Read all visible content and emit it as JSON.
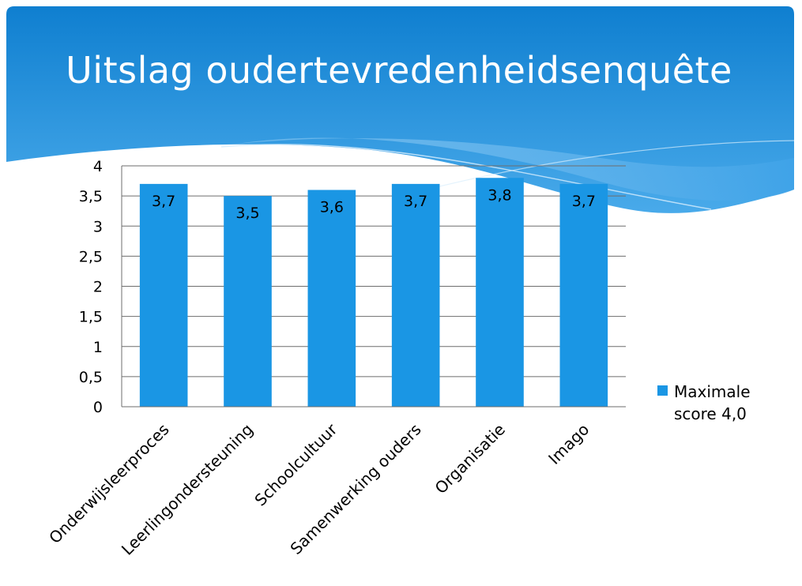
{
  "slide": {
    "title": "Uitslag oudertevredenheidsenquête",
    "header_color": "#1a8bd6",
    "header_light": "#5fb4ec"
  },
  "chart_data": {
    "type": "bar",
    "categories": [
      "Onderwijsleerproces",
      "Leerlingondersteuning",
      "Schoolcultuur",
      "Samenwerking ouders",
      "Organisatie",
      "Imago"
    ],
    "series": [
      {
        "name": "Maximale score 4,0",
        "values": [
          3.7,
          3.5,
          3.6,
          3.7,
          3.8,
          3.7
        ],
        "color": "#1a96e4"
      }
    ],
    "data_labels": [
      "3,7",
      "3,5",
      "3,6",
      "3,7",
      "3,8",
      "3,7"
    ],
    "yticks": [
      "0",
      "0,5",
      "1",
      "1,5",
      "2",
      "2,5",
      "3",
      "3,5",
      "4"
    ],
    "ylim": [
      0,
      4
    ],
    "grid": true,
    "legend_position": "right"
  }
}
